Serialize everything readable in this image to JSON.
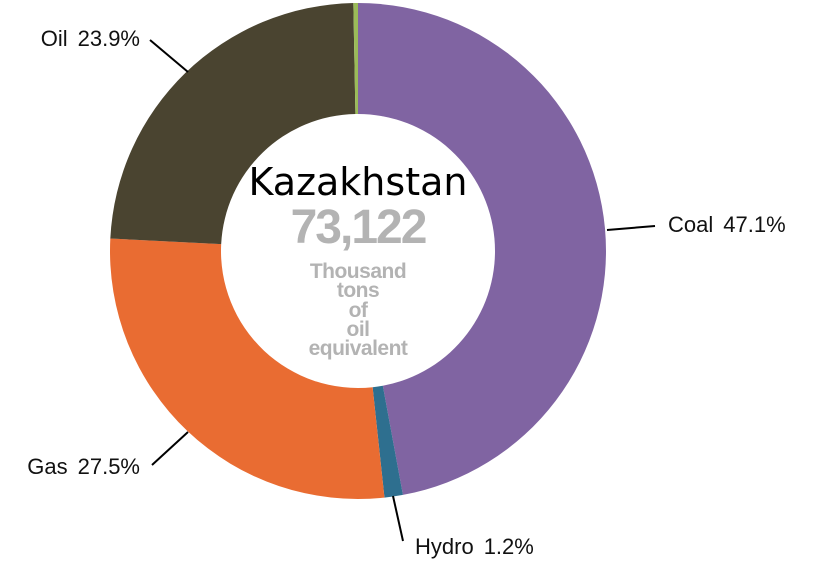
{
  "chart_data": {
    "type": "donut",
    "title": "Kazakhstan",
    "total": {
      "value": 73122,
      "label": "73,122"
    },
    "unit": "Thousand tons of oil equivalent",
    "categories": [
      "Coal",
      "Hydro",
      "Gas",
      "Oil",
      null
    ],
    "values": [
      47.1,
      1.2,
      27.5,
      23.9,
      0.3
    ],
    "value_labels": [
      "47.1%",
      "1.2%",
      "27.5%",
      "23.9%",
      null
    ],
    "colors": [
      "#8064a2",
      "#2e6f8f",
      "#e96c32",
      "#4a4430",
      "#9bbb59"
    ]
  }
}
